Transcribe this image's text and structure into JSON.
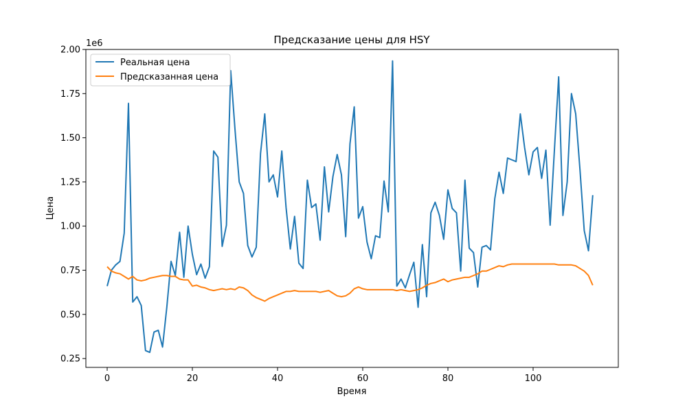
{
  "chart_data": {
    "type": "line",
    "title": "Предсказание цены для HSY",
    "xlabel": "Время",
    "ylabel": "Цена",
    "y_offset_text": "1e6",
    "xlim": [
      -5,
      120
    ],
    "ylim": [
      0.2,
      2.0
    ],
    "xticks": [
      0,
      20,
      40,
      60,
      80,
      100
    ],
    "yticks": [
      0.25,
      0.5,
      0.75,
      1.0,
      1.25,
      1.5,
      1.75,
      2.0
    ],
    "ytick_labels": [
      "0.25",
      "0.50",
      "0.75",
      "1.00",
      "1.25",
      "1.50",
      "1.75",
      "2.00"
    ],
    "grid": false,
    "legend_position": "upper-left",
    "series": [
      {
        "name": "Реальная цена",
        "color": "#1f77b4",
        "values": [
          0.66,
          0.75,
          0.78,
          0.8,
          0.96,
          1.695,
          0.57,
          0.6,
          0.55,
          0.295,
          0.285,
          0.4,
          0.41,
          0.315,
          0.54,
          0.8,
          0.72,
          0.965,
          0.71,
          1.0,
          0.84,
          0.725,
          0.785,
          0.705,
          0.77,
          1.425,
          1.39,
          0.885,
          1.005,
          1.88,
          1.55,
          1.25,
          1.185,
          0.89,
          0.825,
          0.88,
          1.41,
          1.635,
          1.25,
          1.29,
          1.165,
          1.425,
          1.105,
          0.87,
          1.055,
          0.79,
          0.76,
          1.26,
          1.105,
          1.125,
          0.92,
          1.335,
          1.08,
          1.28,
          1.405,
          1.29,
          0.94,
          1.465,
          1.675,
          1.045,
          1.11,
          0.91,
          0.815,
          0.945,
          0.935,
          1.255,
          1.08,
          1.935,
          0.66,
          0.7,
          0.65,
          0.725,
          0.795,
          0.54,
          0.895,
          0.6,
          1.075,
          1.135,
          1.06,
          0.925,
          1.205,
          1.1,
          1.075,
          0.745,
          1.26,
          0.875,
          0.85,
          0.655,
          0.88,
          0.89,
          0.865,
          1.155,
          1.305,
          1.185,
          1.385,
          1.375,
          1.365,
          1.635,
          1.445,
          1.29,
          1.42,
          1.445,
          1.27,
          1.43,
          1.005,
          1.43,
          1.845,
          1.06,
          1.25,
          1.75,
          1.635,
          1.32,
          0.975,
          0.86,
          1.175
        ]
      },
      {
        "name": "Предсказанная цена",
        "color": "#ff7f0e",
        "values": [
          0.77,
          0.745,
          0.735,
          0.73,
          0.715,
          0.7,
          0.715,
          0.695,
          0.69,
          0.695,
          0.705,
          0.71,
          0.715,
          0.72,
          0.72,
          0.715,
          0.715,
          0.7,
          0.695,
          0.695,
          0.66,
          0.665,
          0.655,
          0.65,
          0.64,
          0.635,
          0.64,
          0.645,
          0.64,
          0.645,
          0.64,
          0.655,
          0.65,
          0.635,
          0.61,
          0.595,
          0.585,
          0.575,
          0.59,
          0.6,
          0.61,
          0.62,
          0.63,
          0.63,
          0.635,
          0.63,
          0.63,
          0.63,
          0.63,
          0.63,
          0.625,
          0.63,
          0.635,
          0.62,
          0.605,
          0.6,
          0.605,
          0.62,
          0.645,
          0.655,
          0.645,
          0.64,
          0.64,
          0.64,
          0.64,
          0.64,
          0.64,
          0.64,
          0.635,
          0.64,
          0.635,
          0.63,
          0.635,
          0.64,
          0.65,
          0.665,
          0.675,
          0.68,
          0.69,
          0.7,
          0.685,
          0.695,
          0.7,
          0.705,
          0.71,
          0.71,
          0.72,
          0.73,
          0.745,
          0.745,
          0.755,
          0.765,
          0.775,
          0.77,
          0.78,
          0.785,
          0.785,
          0.785,
          0.785,
          0.785,
          0.785,
          0.785,
          0.785,
          0.785,
          0.785,
          0.785,
          0.78,
          0.78,
          0.78,
          0.78,
          0.775,
          0.76,
          0.745,
          0.72,
          0.665
        ]
      }
    ]
  }
}
